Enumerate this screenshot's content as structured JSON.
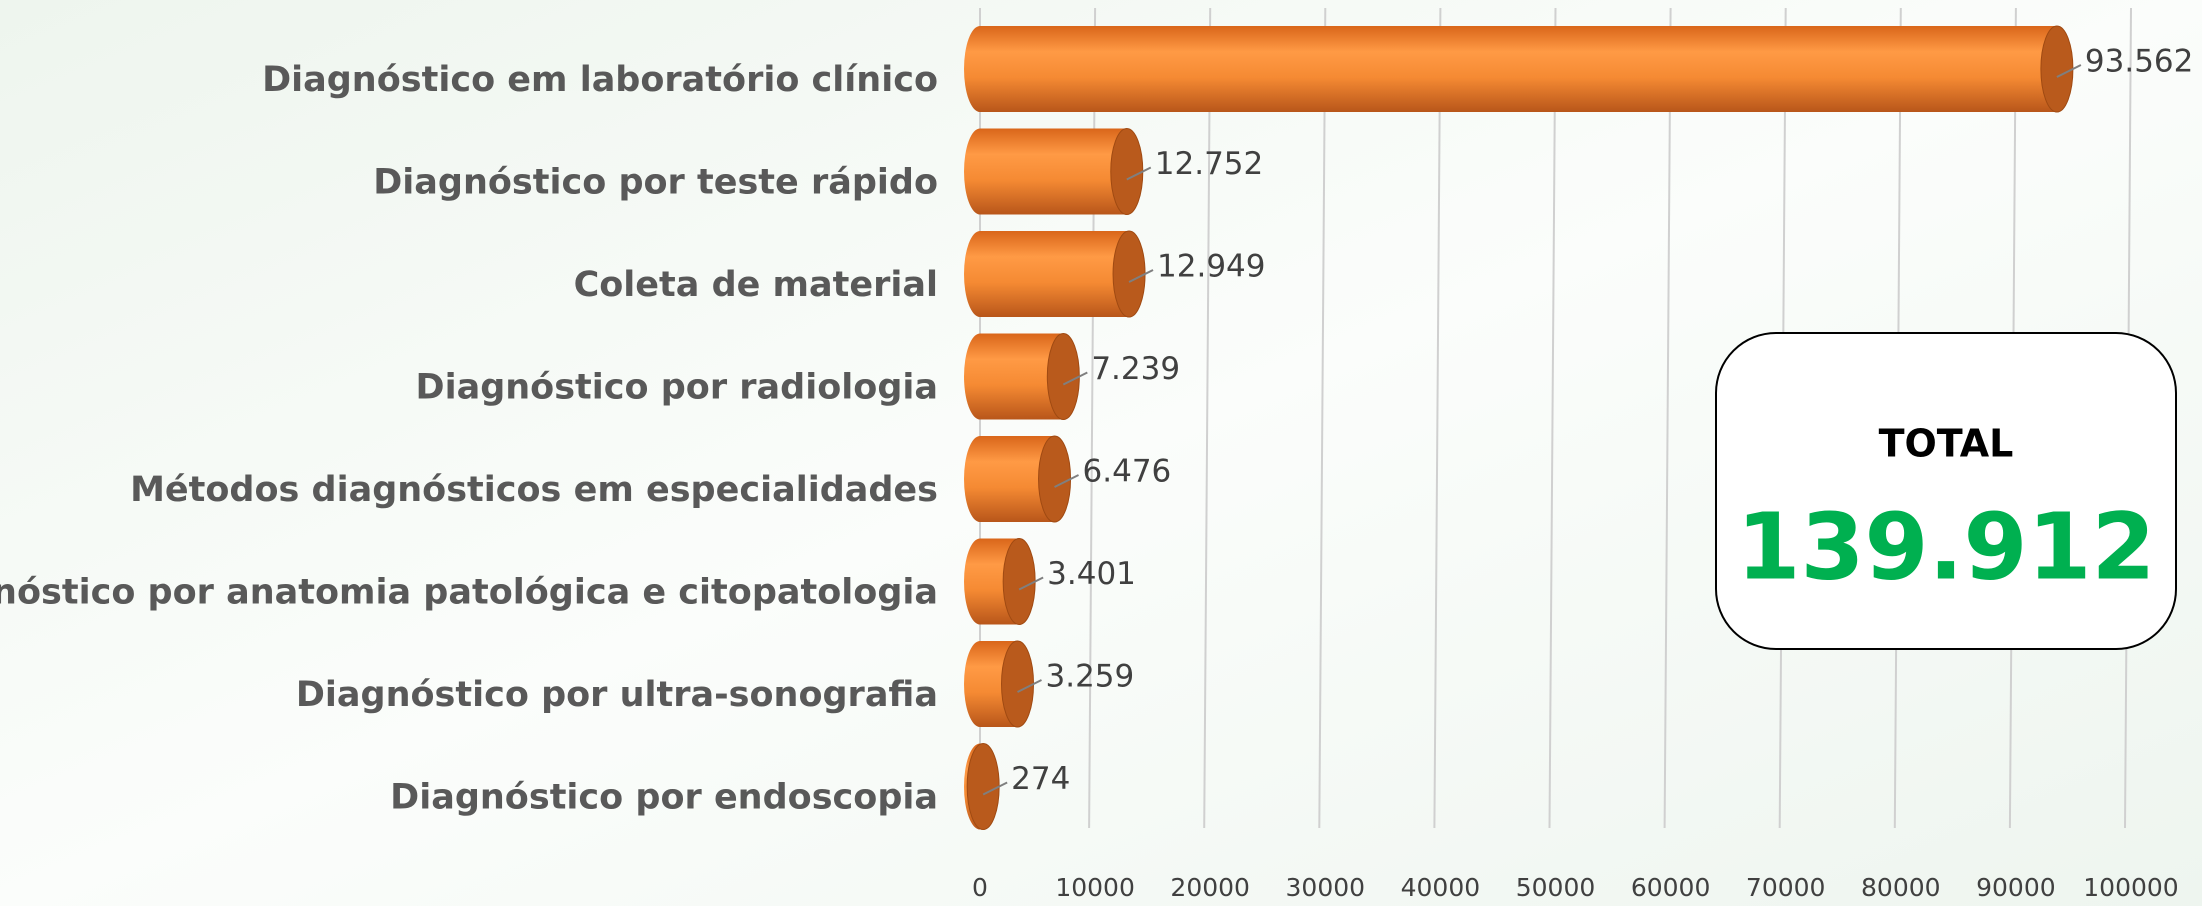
{
  "chart_data": {
    "type": "bar",
    "orientation": "horizontal",
    "categories": [
      "Diagnóstico em laboratório clínico",
      "Diagnóstico por teste rápido",
      "Coleta de material",
      "Diagnóstico por radiologia",
      "Métodos diagnósticos em especialidades",
      "Diagnóstico por anatomia patológica e citopatologia",
      "Diagnóstico por ultra-sonografia",
      "Diagnóstico por endoscopia"
    ],
    "values": [
      93562,
      12752,
      12949,
      7239,
      6476,
      3401,
      3259,
      274
    ],
    "value_labels": [
      "93.562",
      "12.752",
      "12.949",
      "7.239",
      "6.476",
      "3.401",
      "3.259",
      "274"
    ],
    "color": "#f0842c",
    "xlim": [
      0,
      100000
    ],
    "xticks": [
      0,
      10000,
      20000,
      30000,
      40000,
      50000,
      60000,
      70000,
      80000,
      90000,
      100000
    ],
    "grid": true,
    "total": {
      "label": "TOTAL",
      "value_label": "139.912"
    }
  }
}
